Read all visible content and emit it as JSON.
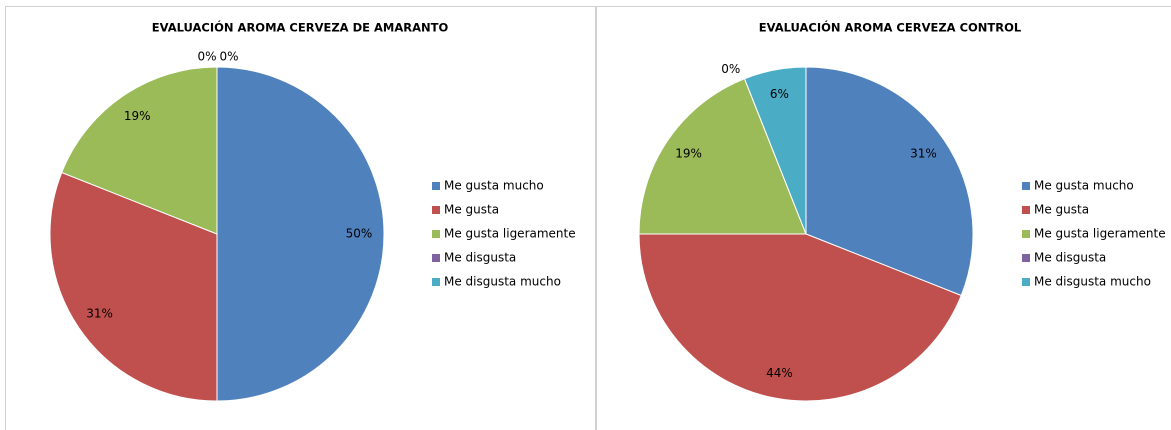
{
  "chart_data": [
    {
      "type": "pie",
      "title": "EVALUACIÓN AROMA CERVEZA DE AMARANTO",
      "categories": [
        "Me gusta mucho",
        "Me gusta",
        "Me gusta ligeramente",
        "Me disgusta",
        "Me disgusta mucho"
      ],
      "values": [
        50,
        31,
        19,
        0,
        0
      ],
      "value_labels": [
        "50%",
        "31%",
        "19%",
        "0%",
        "0%"
      ],
      "colors": [
        "#4f81bd",
        "#c0504d",
        "#9bbb59",
        "#8064a2",
        "#4bacc6"
      ],
      "legend": "right"
    },
    {
      "type": "pie",
      "title": "EVALUACIÓN AROMA CERVEZA CONTROL",
      "categories": [
        "Me gusta mucho",
        "Me gusta",
        "Me gusta ligeramente",
        "Me disgusta",
        "Me disgusta mucho"
      ],
      "values": [
        31,
        44,
        19,
        0,
        6
      ],
      "value_labels": [
        "31%",
        "44%",
        "19%",
        "0%",
        "6%"
      ],
      "colors": [
        "#4f81bd",
        "#c0504d",
        "#9bbb59",
        "#8064a2",
        "#4bacc6"
      ],
      "legend": "right"
    }
  ]
}
